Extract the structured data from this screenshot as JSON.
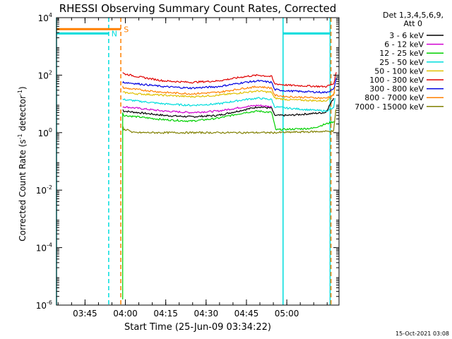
{
  "chart_data": {
    "type": "line",
    "title": "RHESSI Observing Summary Count Rates, Corrected",
    "xlabel": "Start Time (25-Jun-09 03:34:22)",
    "ylabel_parts": {
      "a": "Corrected Count Rate (s",
      "b": "-1",
      "c": " detector",
      "d": "-1",
      "e": ")"
    },
    "yscale": "log",
    "x_unit": "minutes since 03:34:22",
    "xlim": [
      0,
      105
    ],
    "ylim_exponents": [
      -6,
      4
    ],
    "y_ticks": [
      {
        "base": "10",
        "exp": "-6",
        "value": -6
      },
      {
        "base": "10",
        "exp": "-4",
        "value": -4
      },
      {
        "base": "10",
        "exp": "-2",
        "value": -2
      },
      {
        "base": "10",
        "exp": "0",
        "value": 0
      },
      {
        "base": "10",
        "exp": "2",
        "value": 2
      },
      {
        "base": "10",
        "exp": "4",
        "value": 4
      }
    ],
    "x_ticks": [
      {
        "label": "03:45",
        "t": 10.6
      },
      {
        "label": "04:00",
        "t": 25.6
      },
      {
        "label": "04:15",
        "t": 40.6
      },
      {
        "label": "04:30",
        "t": 55.6
      },
      {
        "label": "04:45",
        "t": 70.6
      },
      {
        "label": "05:00",
        "t": 85.6
      }
    ],
    "legend_header": [
      "Det 1,3,4,5,6,9,",
      "Att 0"
    ],
    "series": [
      {
        "name": "3 - 6 keV",
        "color": "#000000",
        "t": [
          24.6,
          25,
          30,
          40,
          50,
          60,
          70,
          75,
          80,
          81,
          86,
          100,
          103
        ],
        "log10": [
          0.8,
          0.75,
          0.7,
          0.6,
          0.55,
          0.6,
          0.8,
          0.9,
          0.85,
          0.6,
          0.6,
          0.7,
          1.2
        ]
      },
      {
        "name": "6 - 12 keV",
        "color": "#d000d0",
        "t": [
          24.6,
          25,
          30,
          40,
          50,
          60,
          70,
          75,
          80
        ],
        "log10": [
          0.9,
          0.9,
          0.85,
          0.75,
          0.7,
          0.75,
          0.9,
          0.95,
          0.9
        ]
      },
      {
        "name": "12 - 25 keV",
        "color": "#00d000",
        "t": [
          24.6,
          25,
          30,
          40,
          50,
          60,
          70,
          75,
          80,
          81,
          81.5,
          95,
          103.5
        ],
        "log10": [
          0.7,
          0.6,
          0.55,
          0.45,
          0.4,
          0.5,
          0.7,
          0.75,
          0.7,
          0.3,
          0.1,
          0.15,
          0.4
        ]
      },
      {
        "name": "25 - 50 keV",
        "color": "#00dddd",
        "t": [
          24.6,
          25,
          30,
          40,
          50,
          60,
          70,
          75,
          80,
          81,
          86,
          100,
          103,
          103.5
        ],
        "log10": [
          1.15,
          1.15,
          1.1,
          1.0,
          0.95,
          1.0,
          1.15,
          1.2,
          1.15,
          0.9,
          0.85,
          0.75,
          0.85,
          1.2
        ]
      },
      {
        "name": "50 - 100 keV",
        "color": "#e0c000",
        "t": [
          24.6,
          25,
          30,
          40,
          50,
          60,
          70,
          75,
          80,
          81,
          86,
          100,
          103.5
        ],
        "log10": [
          1.4,
          1.4,
          1.35,
          1.3,
          1.25,
          1.3,
          1.4,
          1.45,
          1.4,
          1.2,
          1.15,
          1.1,
          1.4
        ]
      },
      {
        "name": "100 - 300 keV",
        "color": "#e00000",
        "t": [
          24.6,
          25,
          30,
          40,
          50,
          60,
          70,
          75,
          80,
          81,
          86,
          100,
          103,
          104
        ],
        "log10": [
          2.1,
          2.05,
          1.95,
          1.8,
          1.75,
          1.8,
          1.95,
          2.0,
          1.95,
          1.7,
          1.65,
          1.6,
          1.7,
          2.1
        ]
      },
      {
        "name": "300 - 800 keV",
        "color": "#0000e0",
        "t": [
          24.6,
          25,
          30,
          40,
          50,
          60,
          70,
          75,
          80,
          81,
          86,
          100,
          103,
          104
        ],
        "log10": [
          1.75,
          1.75,
          1.7,
          1.6,
          1.55,
          1.6,
          1.75,
          1.8,
          1.75,
          1.5,
          1.45,
          1.4,
          1.5,
          1.9
        ]
      },
      {
        "name": "800 - 7000 keV",
        "color": "#ff8000",
        "t": [
          24.6,
          25,
          30,
          40,
          50,
          60,
          70,
          75,
          80,
          81,
          86,
          100,
          103,
          103.5
        ],
        "log10": [
          1.6,
          1.55,
          1.5,
          1.4,
          1.35,
          1.4,
          1.55,
          1.6,
          1.55,
          1.3,
          1.25,
          1.2,
          1.3,
          1.6
        ]
      },
      {
        "name": "7000 - 15000 keV",
        "color": "#808000",
        "t": [
          24.6,
          25,
          27,
          28,
          30,
          35,
          36,
          36.5,
          77,
          78,
          79,
          80,
          81,
          103,
          103.5,
          103.8
        ],
        "log10": [
          0.2,
          0.1,
          0.1,
          0.0,
          0.0,
          0.0,
          0.0,
          0.0,
          0.0,
          0.0,
          0.0,
          0.0,
          0.0,
          0.05,
          0.5,
          0.8
        ]
      }
    ],
    "state_bars": [
      {
        "name": "saa-orbit-bar",
        "color": "#ff8000",
        "t0": 0,
        "t1": 23.9,
        "log10": 3.6
      },
      {
        "name": "night-bar-left",
        "color": "#00dddd",
        "t0": 0,
        "t1": 19.4,
        "log10": 3.45
      },
      {
        "name": "night-bar-right",
        "color": "#00dddd",
        "t0": 84.2,
        "t1": 101.7,
        "log10": 3.45
      }
    ],
    "vlines": [
      {
        "name": "night-start-line",
        "color": "#00dddd",
        "t": 0,
        "dashed": false
      },
      {
        "name": "night-end-line",
        "color": "#00dddd",
        "t": 19.4,
        "dashed": true
      },
      {
        "name": "saa-end-line",
        "color": "#ff8000",
        "t": 23.9,
        "dashed": true
      },
      {
        "name": "night-start-line-2",
        "color": "#00dddd",
        "t": 84.2,
        "dashed": false
      },
      {
        "name": "night-end-line-2",
        "color": "#00dddd",
        "t": 101.7,
        "dashed": false
      },
      {
        "name": "saa-line-2",
        "color": "#ff8000",
        "t": 102.0,
        "dashed": true
      }
    ],
    "annotations": [
      {
        "text": "S",
        "color": "#ff8000",
        "t": 25.0,
        "log10": 3.6
      },
      {
        "text": "N",
        "color": "#00dddd",
        "t": 20.4,
        "log10": 3.45
      }
    ],
    "timestamp": "15-Oct-2021 03:08"
  }
}
